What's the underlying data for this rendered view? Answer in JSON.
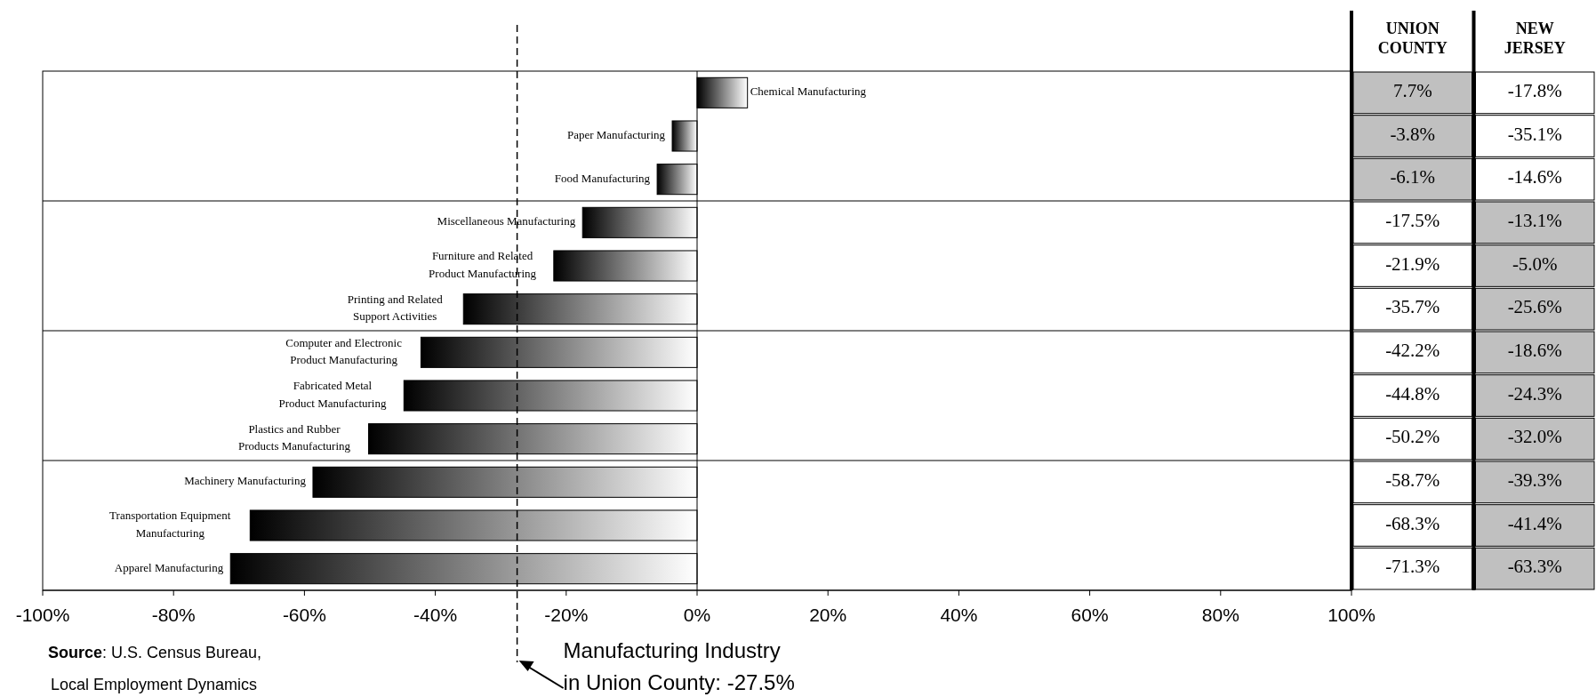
{
  "chart_data": [
    {
      "type": "bar",
      "orientation": "horizontal",
      "categories": [
        "Chemical Manufacturing",
        "Paper Manufacturing",
        "Food Manufacturing",
        "Miscellaneous Manufacturing",
        "Furniture and Related Product Manufacturing",
        "Printing and Related Support Activities",
        "Computer and Electronic Product Manufacturing",
        "Fabricated Metal Product Manufacturing",
        "Plastics and Rubber Products Manufacturing",
        "Machinery Manufacturing",
        "Transportation Equipment Manufacturing",
        "Apparel Manufacturing"
      ],
      "series": [
        {
          "color": "#000000",
          "values": [
            7.7,
            -3.8,
            -6.1,
            -17.5,
            -21.9,
            -35.7,
            -42.2,
            -44.8,
            -50.2,
            -58.7,
            -68.3,
            -71.3
          ]
        }
      ],
      "xlim": [
        -100,
        100
      ],
      "xticks": [
        {
          "value": -100,
          "label": "-100%"
        },
        {
          "value": -80,
          "label": "-80%"
        },
        {
          "value": -60,
          "label": "-60%"
        },
        {
          "value": -40,
          "label": "-40%"
        },
        {
          "value": -20,
          "label": "-20%"
        },
        {
          "value": 0,
          "label": "0%"
        },
        {
          "value": 20,
          "label": "20%"
        },
        {
          "value": 40,
          "label": "40%"
        },
        {
          "value": 60,
          "label": "60%"
        },
        {
          "value": 80,
          "label": "80%"
        },
        {
          "value": 100,
          "label": "100%"
        }
      ],
      "ref_lines": [
        {
          "axis": "x",
          "value": -27.5,
          "label": "Manufacturing Industry in Union County: -27.5%",
          "line_style": "dashed",
          "color": "#000000"
        }
      ],
      "annotations": [
        "Source: U.S. Census Bureau, Local Employment Dynamics"
      ]
    },
    {
      "type": "heatmap",
      "categories": [
        "UNION COUNTY",
        "NEW JERSEY"
      ],
      "y_categories": [
        null,
        null,
        null,
        null,
        null,
        null,
        null,
        null,
        null,
        null,
        null,
        null
      ],
      "cells": [
        [
          7.7,
          -17.8
        ],
        [
          -3.8,
          -35.1
        ],
        [
          -6.1,
          -14.6
        ],
        [
          -17.5,
          -13.1
        ],
        [
          -21.9,
          -5.0
        ],
        [
          -35.7,
          -25.6
        ],
        [
          -42.2,
          -18.6
        ],
        [
          -44.8,
          -24.3
        ],
        [
          -50.2,
          -32.0
        ],
        [
          -58.7,
          -39.3
        ],
        [
          -68.3,
          -41.4
        ],
        [
          -71.3,
          -63.3
        ]
      ],
      "cell_labels": [
        [
          "7.7%",
          "-17.8%"
        ],
        [
          "-3.8%",
          "-35.1%"
        ],
        [
          "-6.1%",
          "-14.6%"
        ],
        [
          "-17.5%",
          "-13.1%"
        ],
        [
          "-21.9%",
          "-5.0%"
        ],
        [
          "-35.7%",
          "-25.6%"
        ],
        [
          "-42.2%",
          "-18.6%"
        ],
        [
          "-44.8%",
          "-24.3%"
        ],
        [
          "-50.2%",
          "-32.0%"
        ],
        [
          "-58.7%",
          "-39.3%"
        ],
        [
          "-68.3%",
          "-41.4%"
        ],
        [
          "-71.3%",
          "-63.3%"
        ]
      ]
    }
  ]
}
